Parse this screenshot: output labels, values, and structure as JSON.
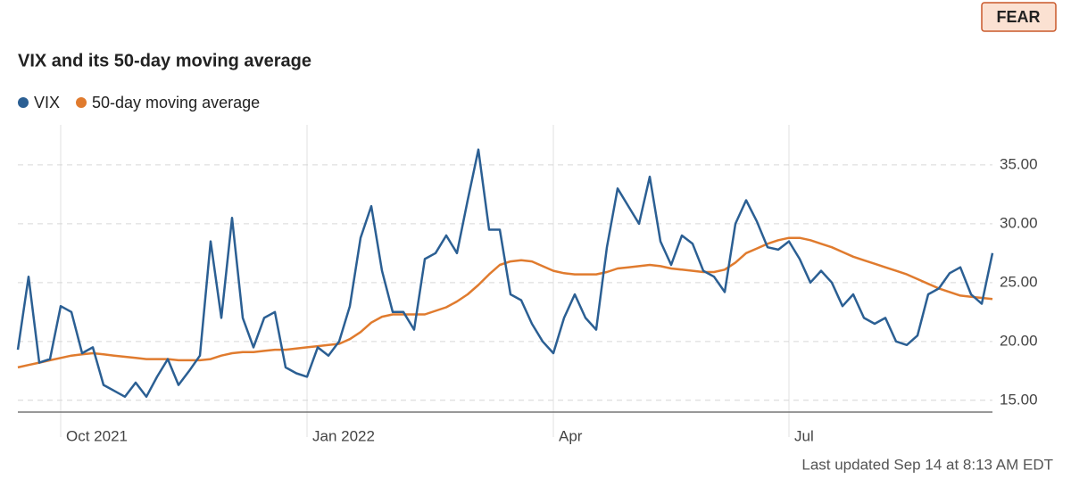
{
  "badge": "FEAR",
  "footer": "Last updated Sep 14 at 8:13 AM EDT",
  "chart_data": {
    "type": "line",
    "title": "VIX and its 50-day moving average",
    "categories": [
      null,
      null,
      null,
      null,
      "Oct 2021",
      null,
      null,
      null,
      null,
      null,
      null,
      null,
      null,
      null,
      null,
      null,
      null,
      null,
      null,
      null,
      null,
      null,
      null,
      null,
      null,
      null,
      null,
      "Jan 2022",
      null,
      null,
      null,
      null,
      null,
      null,
      null,
      null,
      null,
      null,
      null,
      null,
      null,
      null,
      null,
      null,
      null,
      null,
      null,
      null,
      null,
      null,
      "Apr",
      null,
      null,
      null,
      null,
      null,
      null,
      null,
      null,
      null,
      null,
      null,
      null,
      null,
      null,
      null,
      null,
      null,
      null,
      null,
      null,
      null,
      "Jul",
      null,
      null,
      null,
      null,
      null,
      null,
      null,
      null,
      null,
      null,
      null,
      null,
      null,
      null,
      null,
      null,
      null,
      null,
      null
    ],
    "series": [
      {
        "name": "VIX",
        "color": "#2b5f93",
        "values": [
          19.3,
          25.5,
          18.2,
          18.5,
          23,
          22.5,
          19,
          19.5,
          16.3,
          15.8,
          15.3,
          16.5,
          15.3,
          17,
          18.5,
          16.3,
          17.5,
          18.8,
          28.5,
          22,
          30.5,
          22,
          19.5,
          22,
          22.5,
          17.8,
          17.3,
          17,
          19.5,
          18.8,
          20,
          23,
          28.8,
          31.5,
          26,
          22.5,
          22.5,
          21,
          27,
          27.5,
          29,
          27.5,
          32,
          36.3,
          29.5,
          29.5,
          24,
          23.5,
          21.5,
          20,
          19,
          22,
          24,
          22,
          21,
          28,
          33,
          31.5,
          30,
          34,
          28.5,
          26.5,
          29,
          28.3,
          26,
          25.5,
          24.2,
          30,
          32,
          30.2,
          28,
          27.8,
          28.5,
          27,
          25,
          26,
          25,
          23,
          24,
          22,
          21.5,
          22,
          20,
          19.7,
          20.5,
          24,
          24.5,
          25.8,
          26.3,
          24,
          23.2,
          27.5
        ]
      },
      {
        "name": "50-day moving average",
        "color": "#e07b2e",
        "values": [
          17.8,
          18,
          18.2,
          18.4,
          18.6,
          18.8,
          18.9,
          19,
          18.9,
          18.8,
          18.7,
          18.6,
          18.5,
          18.5,
          18.5,
          18.4,
          18.4,
          18.4,
          18.5,
          18.8,
          19,
          19.1,
          19.1,
          19.2,
          19.3,
          19.3,
          19.4,
          19.5,
          19.6,
          19.7,
          19.8,
          20.2,
          20.8,
          21.6,
          22.1,
          22.3,
          22.3,
          22.3,
          22.3,
          22.6,
          22.9,
          23.4,
          24,
          24.8,
          25.7,
          26.5,
          26.8,
          26.9,
          26.8,
          26.4,
          26,
          25.8,
          25.7,
          25.7,
          25.7,
          25.9,
          26.2,
          26.3,
          26.4,
          26.5,
          26.4,
          26.2,
          26.1,
          26,
          25.9,
          25.9,
          26.1,
          26.7,
          27.5,
          27.9,
          28.3,
          28.6,
          28.8,
          28.8,
          28.6,
          28.3,
          28,
          27.6,
          27.2,
          26.9,
          26.6,
          26.3,
          26,
          25.7,
          25.3,
          24.9,
          24.5,
          24.2,
          23.9,
          23.8,
          23.7,
          23.6
        ]
      }
    ],
    "ylim": [
      14,
      38.4
    ],
    "yticks": [
      {
        "value": 15,
        "label": "15.00"
      },
      {
        "value": 20,
        "label": "20.00"
      },
      {
        "value": 25,
        "label": "25.00"
      },
      {
        "value": 30,
        "label": "30.00"
      },
      {
        "value": 35,
        "label": "35.00"
      }
    ],
    "grid": true
  }
}
